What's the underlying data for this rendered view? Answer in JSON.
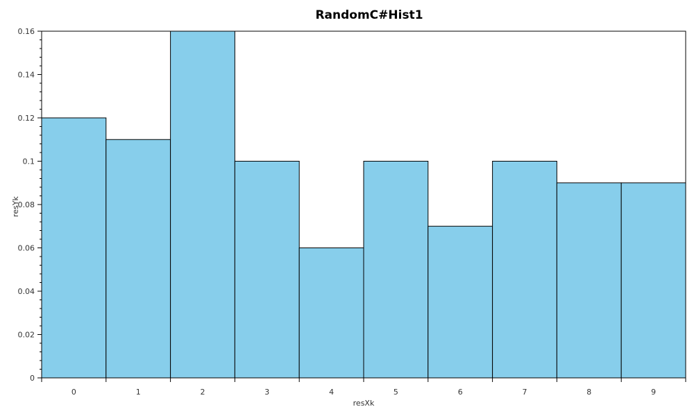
{
  "chart_data": {
    "type": "bar",
    "title": "RandomC#Hist1",
    "xlabel": "resXk",
    "ylabel": "resYk",
    "categories": [
      "0",
      "1",
      "2",
      "3",
      "4",
      "5",
      "6",
      "7",
      "8",
      "9"
    ],
    "values": [
      0.12,
      0.11,
      0.16,
      0.1,
      0.06,
      0.1,
      0.07,
      0.1,
      0.09,
      0.09
    ],
    "ylim": [
      0,
      0.16
    ],
    "yticks": [
      0,
      0.02,
      0.04,
      0.06,
      0.08,
      0.1,
      0.12,
      0.14,
      0.16
    ],
    "ytick_labels": [
      "0",
      "0.02",
      "0.04",
      "0.06",
      "0.08",
      "0.1",
      "0.12",
      "0.14",
      "0.16"
    ],
    "grid": false,
    "bar_color": "#87CEEB",
    "bar_edge_color": "#000000"
  }
}
